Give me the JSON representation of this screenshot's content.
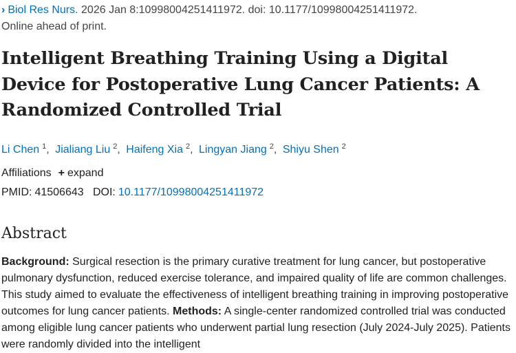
{
  "citation": {
    "journal": "Biol Res Nurs.",
    "details": " 2026 Jan 8:10998004251411972. doi: 10.1177/10998004251411972.",
    "status": "Online ahead of print."
  },
  "title": "Intelligent Breathing Training Using a Digital Device for Postoperative Lung Cancer Patients: A Randomized Controlled Trial",
  "authors": [
    {
      "name": "Li Chen",
      "sup": "1"
    },
    {
      "name": "Jialiang Liu",
      "sup": "2"
    },
    {
      "name": "Haifeng Xia",
      "sup": "2"
    },
    {
      "name": "Lingyan Jiang",
      "sup": "2"
    },
    {
      "name": "Shiyu Shen",
      "sup": "2"
    }
  ],
  "affiliations": {
    "label": "Affiliations",
    "expand": "expand"
  },
  "ids": {
    "pmid_label": "PMID:",
    "pmid": "41506643",
    "doi_label": "DOI:",
    "doi": "10.1177/10998004251411972"
  },
  "abstract": {
    "heading": "Abstract",
    "background_label": "Background:",
    "background": " Surgical resection is the primary curative treatment for lung cancer, but postoperative pulmonary dysfunction, reduced exercise tolerance, and impaired quality of life are common challenges. This study aimed to evaluate the effectiveness of intelligent breathing training in improving postoperative outcomes for lung cancer patients. ",
    "methods_label": "Methods:",
    "methods": " A single-center randomized controlled trial was conducted among eligible lung cancer patients who underwent partial lung resection (July 2024-July 2025). Patients were randomly divided into the intelligent"
  },
  "colors": {
    "link": "#0071bc",
    "text": "#212121"
  }
}
